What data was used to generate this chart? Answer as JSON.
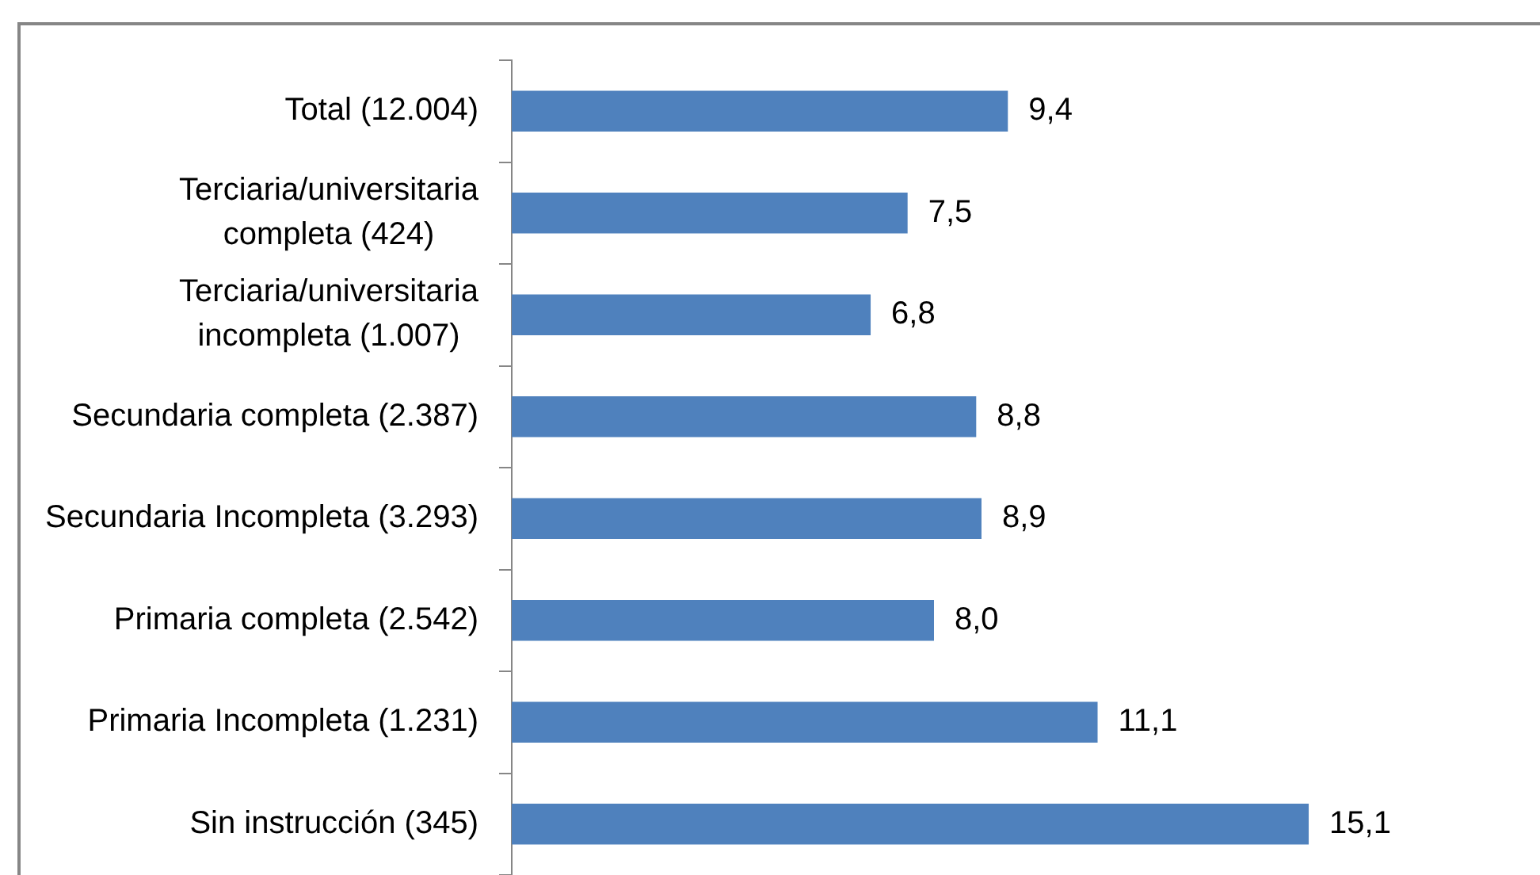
{
  "chart_data": {
    "type": "bar",
    "orientation": "horizontal",
    "categories": [
      "Total (12.004)",
      "Terciaria/universitaria completa (424)",
      "Terciaria/universitaria incompleta (1.007)",
      "Secundaria completa (2.387)",
      "Secundaria Incompleta (3.293)",
      "Primaria completa (2.542)",
      "Primaria Incompleta (1.231)",
      "Sin instrucción (345)"
    ],
    "values": [
      9.4,
      7.5,
      6.8,
      8.8,
      8.9,
      8.0,
      11.1,
      15.1
    ],
    "color": "#4f81bd",
    "value_labels": [
      "9,4",
      "7,5",
      "6,8",
      "8,8",
      "8,9",
      "8,0",
      "11,1",
      "15,1"
    ],
    "tick_labels": "y"
  }
}
